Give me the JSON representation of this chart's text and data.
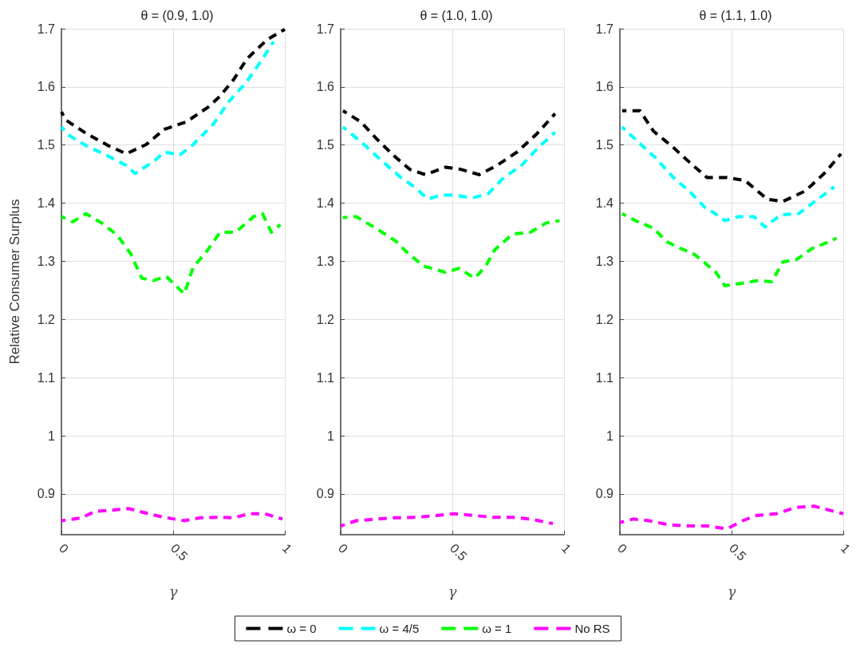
{
  "chart_data": [
    {
      "type": "line",
      "title": "θ = (0.9, 1.0)",
      "xlabel": "γ",
      "ylabel": "Relative Consumer Surplus",
      "xlim": [
        0,
        1
      ],
      "xticks": [
        0,
        0.5,
        1
      ],
      "ylim": [
        0.83,
        1.7
      ],
      "yticks": [
        0.9,
        1,
        1.1,
        1.2,
        1.3,
        1.4,
        1.5,
        1.6,
        1.7
      ],
      "grid": true,
      "legend": "bottom",
      "line_style": "dashed",
      "marker": "none",
      "series": [
        {
          "name": "ω = 0",
          "color": "#000000",
          "x": [
            0,
            0.02,
            0.11,
            0.21,
            0.29,
            0.38,
            0.46,
            0.56,
            0.66,
            0.71,
            0.77,
            0.83,
            0.92,
            1.0
          ],
          "values": [
            1.557,
            1.543,
            1.52,
            1.499,
            1.485,
            1.501,
            1.527,
            1.54,
            1.566,
            1.584,
            1.612,
            1.648,
            1.681,
            1.699
          ]
        },
        {
          "name": "ω = 4/5",
          "color": "#00ffff",
          "x": [
            0,
            0.04,
            0.12,
            0.2,
            0.29,
            0.33,
            0.42,
            0.46,
            0.53,
            0.59,
            0.68,
            0.75,
            0.83,
            0.9,
            0.95
          ],
          "values": [
            1.531,
            1.515,
            1.497,
            1.483,
            1.465,
            1.451,
            1.474,
            1.488,
            1.483,
            1.501,
            1.536,
            1.575,
            1.609,
            1.648,
            1.678
          ]
        },
        {
          "name": "ω = 1",
          "color": "#00ff00",
          "x": [
            0,
            0.05,
            0.11,
            0.18,
            0.25,
            0.31,
            0.36,
            0.41,
            0.47,
            0.55,
            0.59,
            0.65,
            0.71,
            0.78,
            0.86,
            0.9,
            0.94,
            0.98
          ],
          "values": [
            1.377,
            1.368,
            1.382,
            1.366,
            1.345,
            1.313,
            1.271,
            1.267,
            1.274,
            1.244,
            1.29,
            1.317,
            1.35,
            1.35,
            1.377,
            1.382,
            1.35,
            1.363
          ]
        },
        {
          "name": "No RS",
          "color": "#ff00ff",
          "x": [
            0,
            0.09,
            0.15,
            0.22,
            0.3,
            0.39,
            0.46,
            0.55,
            0.62,
            0.71,
            0.77,
            0.84,
            0.91,
            0.99
          ],
          "values": [
            0.854,
            0.859,
            0.87,
            0.872,
            0.875,
            0.866,
            0.86,
            0.854,
            0.859,
            0.86,
            0.859,
            0.866,
            0.866,
            0.857
          ]
        }
      ]
    },
    {
      "type": "line",
      "title": "θ = (1.0, 1.0)",
      "xlabel": "γ",
      "xlim": [
        0,
        1
      ],
      "xticks": [
        0,
        0.5,
        1
      ],
      "ylim": [
        0.83,
        1.7
      ],
      "yticks": [
        0.9,
        1,
        1.1,
        1.2,
        1.3,
        1.4,
        1.5,
        1.6,
        1.7
      ],
      "grid": true,
      "line_style": "dashed",
      "marker": "none",
      "series": [
        {
          "color": "#000000",
          "x": [
            0.01,
            0.09,
            0.16,
            0.24,
            0.31,
            0.38,
            0.47,
            0.54,
            0.62,
            0.7,
            0.79,
            0.88,
            0.96
          ],
          "values": [
            1.559,
            1.54,
            1.511,
            1.481,
            1.458,
            1.449,
            1.462,
            1.458,
            1.449,
            1.465,
            1.488,
            1.52,
            1.554
          ]
        },
        {
          "color": "#00ffff",
          "x": [
            0.01,
            0.09,
            0.19,
            0.27,
            0.33,
            0.39,
            0.45,
            0.51,
            0.59,
            0.66,
            0.73,
            0.81,
            0.88,
            0.96
          ],
          "values": [
            1.531,
            1.506,
            1.471,
            1.444,
            1.428,
            1.407,
            1.414,
            1.414,
            1.409,
            1.416,
            1.444,
            1.465,
            1.494,
            1.522
          ]
        },
        {
          "color": "#00ff00",
          "x": [
            0.01,
            0.07,
            0.1,
            0.17,
            0.25,
            0.29,
            0.37,
            0.47,
            0.53,
            0.6,
            0.65,
            0.69,
            0.77,
            0.85,
            0.92,
            0.98
          ],
          "values": [
            1.375,
            1.377,
            1.37,
            1.354,
            1.334,
            1.318,
            1.292,
            1.281,
            1.288,
            1.271,
            1.292,
            1.32,
            1.347,
            1.35,
            1.366,
            1.37
          ]
        },
        {
          "color": "#ff00ff",
          "x": [
            0,
            0.07,
            0.16,
            0.24,
            0.34,
            0.43,
            0.51,
            0.6,
            0.68,
            0.77,
            0.85,
            0.95
          ],
          "values": [
            0.845,
            0.854,
            0.857,
            0.859,
            0.86,
            0.863,
            0.866,
            0.863,
            0.86,
            0.86,
            0.857,
            0.849
          ]
        }
      ]
    },
    {
      "type": "line",
      "title": "θ = (1.1, 1.0)",
      "xlabel": "γ",
      "xlim": [
        0,
        1
      ],
      "xticks": [
        0,
        0.5,
        1
      ],
      "ylim": [
        0.83,
        1.7
      ],
      "yticks": [
        0.9,
        1,
        1.1,
        1.2,
        1.3,
        1.4,
        1.5,
        1.6,
        1.7
      ],
      "grid": true,
      "line_style": "dashed",
      "marker": "none",
      "series": [
        {
          "color": "#000000",
          "x": [
            0.01,
            0.09,
            0.15,
            0.23,
            0.31,
            0.39,
            0.48,
            0.56,
            0.66,
            0.73,
            0.83,
            0.92,
            0.99
          ],
          "values": [
            1.559,
            1.559,
            1.524,
            1.499,
            1.471,
            1.444,
            1.444,
            1.439,
            1.407,
            1.403,
            1.421,
            1.453,
            1.485
          ]
        },
        {
          "color": "#00ffff",
          "x": [
            0.01,
            0.1,
            0.16,
            0.24,
            0.31,
            0.38,
            0.42,
            0.47,
            0.53,
            0.6,
            0.65,
            0.72,
            0.8,
            0.88,
            0.96
          ],
          "values": [
            1.531,
            1.499,
            1.478,
            1.444,
            1.421,
            1.393,
            1.384,
            1.37,
            1.377,
            1.377,
            1.359,
            1.38,
            1.382,
            1.405,
            1.428
          ]
        },
        {
          "color": "#00ff00",
          "x": [
            0.01,
            0.07,
            0.15,
            0.21,
            0.26,
            0.33,
            0.37,
            0.43,
            0.47,
            0.54,
            0.62,
            0.68,
            0.73,
            0.79,
            0.86,
            0.95,
            0.97
          ],
          "values": [
            1.382,
            1.37,
            1.357,
            1.334,
            1.324,
            1.313,
            1.301,
            1.281,
            1.258,
            1.262,
            1.267,
            1.265,
            1.299,
            1.303,
            1.322,
            1.336,
            1.34
          ]
        },
        {
          "color": "#ff00ff",
          "x": [
            0,
            0.06,
            0.13,
            0.22,
            0.3,
            0.39,
            0.48,
            0.55,
            0.61,
            0.7,
            0.79,
            0.87,
            0.94,
            1.0
          ],
          "values": [
            0.851,
            0.857,
            0.854,
            0.847,
            0.845,
            0.845,
            0.84,
            0.854,
            0.863,
            0.866,
            0.877,
            0.879,
            0.872,
            0.866
          ]
        }
      ]
    }
  ]
}
